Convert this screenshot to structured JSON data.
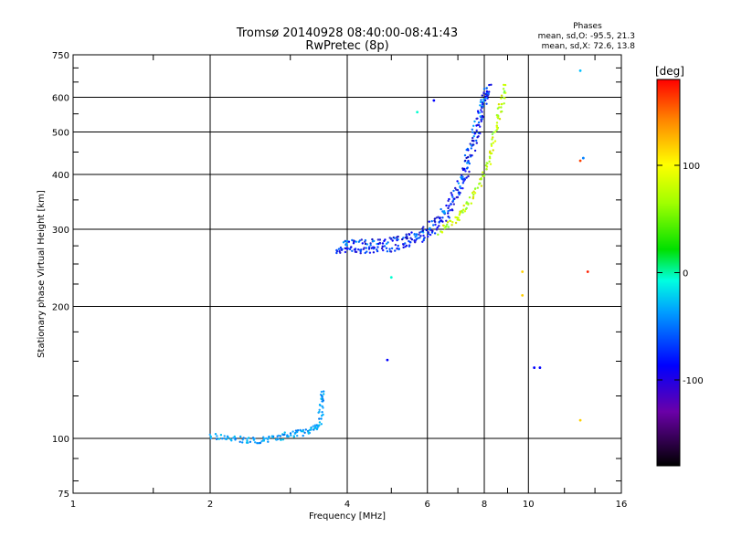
{
  "chart_data": {
    "type": "scatter",
    "title": "Tromsø 20140928 08:40:00-08:41:43",
    "subtitle": "RwPretec (8p)",
    "xlabel": "Frequency [MHz]",
    "ylabel": "Stationary phase Virtual Height [km]",
    "xscale": "log2",
    "yscale": "log",
    "xlim": [
      1,
      16
    ],
    "ylim": [
      75,
      750
    ],
    "grid": true,
    "x_ticks": [
      "1",
      "2",
      "4",
      "6",
      "8",
      "10",
      "16"
    ],
    "y_ticks": [
      "75",
      "100",
      "200",
      "300",
      "400",
      "500",
      "600",
      "750"
    ],
    "phase_info": {
      "title": "Phases",
      "line_o": "mean, sd,O: -95.5, 21.3",
      "line_x": "mean, sd,X:  72.6, 13.8"
    },
    "colorbar": {
      "label": "[deg]",
      "range": [
        -180,
        180
      ],
      "ticks": [
        "100",
        "0",
        "-100"
      ],
      "tick_values": [
        100,
        0,
        -100
      ]
    },
    "series": [
      {
        "trace": "o-mode F-region (blue, ~-95 deg)",
        "points": [
          [
            3.8,
            268
          ],
          [
            4.0,
            270
          ],
          [
            4.3,
            268
          ],
          [
            4.6,
            269
          ],
          [
            5.0,
            271
          ],
          [
            5.4,
            276
          ],
          [
            5.8,
            285
          ],
          [
            6.2,
            298
          ],
          [
            6.6,
            320
          ],
          [
            7.0,
            355
          ],
          [
            7.3,
            400
          ],
          [
            7.6,
            460
          ],
          [
            7.8,
            520
          ],
          [
            8.0,
            580
          ],
          [
            8.2,
            640
          ]
        ]
      },
      {
        "trace": "o-mode F-region upper branch",
        "points": [
          [
            3.9,
            278
          ],
          [
            4.2,
            280
          ],
          [
            4.6,
            280
          ],
          [
            5.0,
            283
          ],
          [
            5.4,
            288
          ],
          [
            5.8,
            296
          ],
          [
            6.2,
            310
          ],
          [
            6.6,
            335
          ],
          [
            7.0,
            375
          ],
          [
            7.3,
            430
          ],
          [
            7.6,
            500
          ],
          [
            7.9,
            580
          ],
          [
            8.1,
            630
          ]
        ]
      },
      {
        "trace": "x-mode F-region (yellow-green, ~+73 deg)",
        "points": [
          [
            6.4,
            295
          ],
          [
            6.8,
            310
          ],
          [
            7.2,
            330
          ],
          [
            7.6,
            360
          ],
          [
            8.0,
            400
          ],
          [
            8.3,
            450
          ],
          [
            8.5,
            510
          ],
          [
            8.7,
            570
          ],
          [
            8.9,
            640
          ]
        ]
      },
      {
        "trace": "E-region (light blue)",
        "points": [
          [
            2.0,
            101
          ],
          [
            2.2,
            100
          ],
          [
            2.4,
            99
          ],
          [
            2.6,
            99
          ],
          [
            2.8,
            100
          ],
          [
            3.0,
            102
          ],
          [
            3.2,
            103
          ],
          [
            3.4,
            105
          ],
          [
            3.5,
            108
          ],
          [
            3.5,
            120
          ],
          [
            3.55,
            128
          ]
        ]
      },
      {
        "trace": "isolated points",
        "points": [
          [
            4.9,
            151
          ],
          [
            5.0,
            233
          ],
          [
            5.7,
            555
          ],
          [
            6.2,
            590
          ],
          [
            9.7,
            240
          ],
          [
            9.7,
            212
          ],
          [
            10.3,
            145
          ],
          [
            10.6,
            145
          ],
          [
            13.0,
            110
          ],
          [
            13.0,
            430
          ],
          [
            13.2,
            436
          ],
          [
            13.0,
            690
          ],
          [
            13.5,
            240
          ]
        ]
      }
    ]
  }
}
